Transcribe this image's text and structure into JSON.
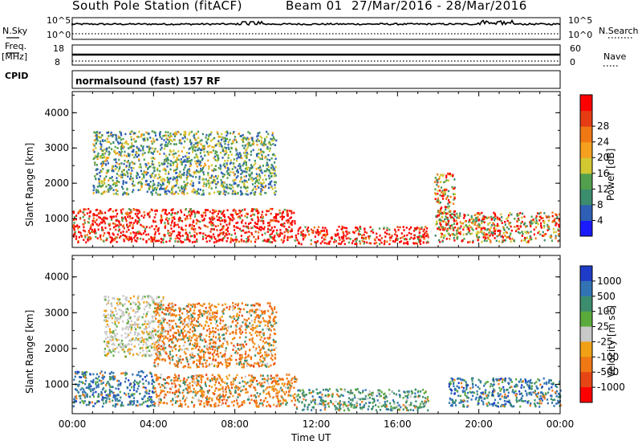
{
  "header": {
    "station": "South Pole Station (fitACF)",
    "beam": "Beam 01",
    "dates": "27/Mar/2016 - 28/Mar/2016",
    "cpid_label": "CPID",
    "program": "normalsound (fast) 157 RF"
  },
  "top_panels": {
    "nsky_label": "N.Sky",
    "nsky_ticks": [
      "10^5",
      "10^0"
    ],
    "nsearch_label": "N.Search",
    "nsearch_ticks": [
      "10^5",
      "10^0"
    ],
    "freq_label": "Freq.",
    "freq_unit": "[MHz]",
    "freq_ticks": [
      "18",
      "8"
    ],
    "nave_label": "Nave",
    "nave_ticks": [
      "60",
      "0"
    ]
  },
  "chart_data": [
    {
      "type": "heatmap",
      "name": "power-panel",
      "xlabel": "",
      "ylabel": "Slant Range [km]",
      "x_ticks": [
        "00:00",
        "04:00",
        "08:00",
        "12:00",
        "16:00",
        "20:00",
        "00:00"
      ],
      "y_ticks": [
        1000,
        2000,
        3000,
        4000
      ],
      "xlim_hours": [
        0,
        24
      ],
      "ylim_km": [
        180,
        4600
      ],
      "colorbar": {
        "label": "Power [dB]",
        "ticks": [
          "4",
          "8",
          "12",
          "16",
          "20",
          "24",
          "28"
        ],
        "colors": [
          "#1a1aff",
          "#2e5fb5",
          "#3c8c6e",
          "#52a04e",
          "#d2c832",
          "#f5a01e",
          "#f07814",
          "#e63c14",
          "#ff0000"
        ]
      },
      "scatter_regions": [
        {
          "t0": 0,
          "t1": 11,
          "r0": 350,
          "r1": 1300,
          "level": "high"
        },
        {
          "t0": 11,
          "t1": 17.5,
          "r0": 300,
          "r1": 800,
          "level": "high"
        },
        {
          "t0": 18,
          "t1": 24,
          "r0": 350,
          "r1": 1200,
          "level": "mid"
        },
        {
          "t0": 1,
          "t1": 10,
          "r0": 1700,
          "r1": 3500,
          "level": "low"
        },
        {
          "t0": 17.8,
          "t1": 18.8,
          "r0": 500,
          "r1": 2300,
          "level": "mid"
        }
      ]
    },
    {
      "type": "heatmap",
      "name": "velocity-panel",
      "xlabel": "Time UT",
      "ylabel": "Slant Range [km]",
      "x_ticks": [
        "00:00",
        "04:00",
        "08:00",
        "12:00",
        "16:00",
        "20:00",
        "00:00"
      ],
      "y_ticks": [
        1000,
        2000,
        3000,
        4000
      ],
      "xlim_hours": [
        0,
        24
      ],
      "ylim_km": [
        180,
        4600
      ],
      "colorbar": {
        "label": "Velocity [m s^-1]",
        "ticks": [
          "1000",
          "500",
          "100",
          "25",
          "-25",
          "-100",
          "-500",
          "-1000"
        ],
        "colors": [
          "#1e3cc8",
          "#3273b4",
          "#3c8c6e",
          "#5aaa3c",
          "#c8c8c8",
          "#f0a014",
          "#f07814",
          "#e64614",
          "#ff0000"
        ]
      },
      "scatter_regions": [
        {
          "t0": 0,
          "t1": 4,
          "r0": 400,
          "r1": 1400,
          "level": "mixed-blue"
        },
        {
          "t0": 4,
          "t1": 11,
          "r0": 400,
          "r1": 1300,
          "level": "mixed-orange"
        },
        {
          "t0": 11,
          "t1": 17.5,
          "r0": 300,
          "r1": 900,
          "level": "mixed-green"
        },
        {
          "t0": 18.5,
          "t1": 24,
          "r0": 400,
          "r1": 1200,
          "level": "mixed-blue"
        },
        {
          "t0": 1.5,
          "t1": 4.5,
          "r0": 1800,
          "r1": 3500,
          "level": "grey"
        },
        {
          "t0": 4,
          "t1": 10,
          "r0": 1500,
          "r1": 3300,
          "level": "mixed-orange"
        }
      ]
    }
  ]
}
